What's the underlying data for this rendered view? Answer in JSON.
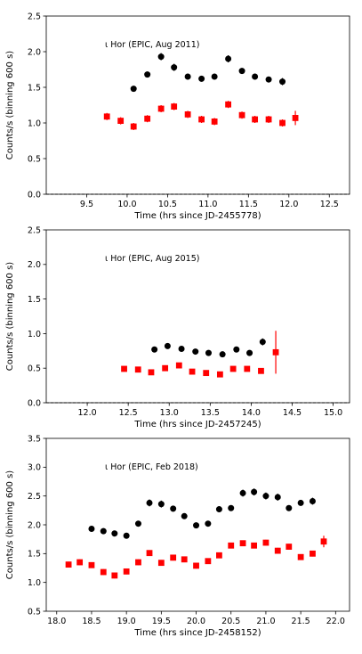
{
  "chart_data": [
    {
      "type": "scatter",
      "annotation": "ι Hor (EPIC, Aug 2011)",
      "xlabel": "Time (hrs since JD-2455778)",
      "ylabel": "Counts/s (binning 600 s)",
      "xlim": [
        9.0,
        12.75
      ],
      "ylim": [
        0.0,
        2.5
      ],
      "xticks": [
        "9.5",
        "10.0",
        "10.5",
        "11.0",
        "11.5",
        "12.0",
        "12.5"
      ],
      "xtick_values": [
        9.5,
        10.0,
        10.5,
        11.0,
        11.5,
        12.0,
        12.5
      ],
      "yticks": [
        "0.0",
        "0.5",
        "1.0",
        "1.5",
        "2.0",
        "2.5"
      ],
      "ytick_values": [
        0.0,
        0.5,
        1.0,
        1.5,
        2.0,
        2.5
      ],
      "series": [
        {
          "color": "#000000",
          "marker": "circle",
          "x": [
            10.08,
            10.25,
            10.42,
            10.58,
            10.75,
            10.92,
            11.08,
            11.25,
            11.42,
            11.58,
            11.75,
            11.92
          ],
          "y": [
            1.48,
            1.68,
            1.93,
            1.78,
            1.65,
            1.62,
            1.65,
            1.9,
            1.73,
            1.65,
            1.61,
            1.58
          ],
          "err": [
            0.04,
            0.04,
            0.05,
            0.05,
            0.04,
            0.04,
            0.04,
            0.05,
            0.04,
            0.04,
            0.04,
            0.05
          ]
        },
        {
          "color": "#ff0000",
          "marker": "square",
          "x": [
            9.75,
            9.92,
            10.08,
            10.25,
            10.42,
            10.58,
            10.75,
            10.92,
            11.08,
            11.25,
            11.42,
            11.58,
            11.75,
            11.92,
            12.08
          ],
          "y": [
            1.09,
            1.03,
            0.95,
            1.06,
            1.2,
            1.23,
            1.12,
            1.05,
            1.02,
            1.26,
            1.11,
            1.05,
            1.05,
            1.0,
            1.07
          ],
          "err": [
            0.05,
            0.05,
            0.05,
            0.05,
            0.05,
            0.05,
            0.05,
            0.05,
            0.05,
            0.05,
            0.05,
            0.05,
            0.05,
            0.05,
            0.1
          ]
        }
      ]
    },
    {
      "type": "scatter",
      "annotation": "ι Hor (EPIC, Aug 2015)",
      "xlabel": "Time (hrs since JD-2457245)",
      "ylabel": "Counts/s (binning 600 s)",
      "xlim": [
        11.5,
        15.2
      ],
      "ylim": [
        0.0,
        2.5
      ],
      "xticks": [
        "12.0",
        "12.5",
        "13.0",
        "13.5",
        "14.0",
        "14.5",
        "15.0"
      ],
      "xtick_values": [
        12.0,
        12.5,
        13.0,
        13.5,
        14.0,
        14.5,
        15.0
      ],
      "yticks": [
        "0.0",
        "0.5",
        "1.0",
        "1.5",
        "2.0",
        "2.5"
      ],
      "ytick_values": [
        0.0,
        0.5,
        1.0,
        1.5,
        2.0,
        2.5
      ],
      "series": [
        {
          "color": "#000000",
          "marker": "circle",
          "x": [
            12.82,
            12.98,
            13.15,
            13.32,
            13.48,
            13.65,
            13.82,
            13.98,
            14.14
          ],
          "y": [
            0.77,
            0.82,
            0.78,
            0.74,
            0.72,
            0.7,
            0.77,
            0.72,
            0.88
          ],
          "err": [
            0.03,
            0.03,
            0.03,
            0.03,
            0.03,
            0.03,
            0.03,
            0.03,
            0.05
          ]
        },
        {
          "color": "#ff0000",
          "marker": "square",
          "x": [
            12.45,
            12.62,
            12.78,
            12.95,
            13.12,
            13.28,
            13.45,
            13.62,
            13.78,
            13.95,
            14.12,
            14.3
          ],
          "y": [
            0.49,
            0.48,
            0.44,
            0.5,
            0.54,
            0.45,
            0.43,
            0.41,
            0.49,
            0.49,
            0.46,
            0.73
          ],
          "err": [
            0.03,
            0.03,
            0.03,
            0.03,
            0.03,
            0.03,
            0.03,
            0.03,
            0.03,
            0.03,
            0.03,
            0.31
          ]
        }
      ]
    },
    {
      "type": "scatter",
      "annotation": "ι Hor (EPIC, Feb 2018)",
      "xlabel": "Time (hrs since JD-2458152)",
      "ylabel": "Counts/s (binning 600 s)",
      "xlim": [
        17.85,
        22.2
      ],
      "ylim": [
        0.5,
        3.5
      ],
      "xticks": [
        "18.0",
        "18.5",
        "19.0",
        "19.5",
        "20.0",
        "20.5",
        "21.0",
        "21.5",
        "22.0"
      ],
      "xtick_values": [
        18.0,
        18.5,
        19.0,
        19.5,
        20.0,
        20.5,
        21.0,
        21.5,
        22.0
      ],
      "yticks": [
        "0.5",
        "1.0",
        "1.5",
        "2.0",
        "2.5",
        "3.0",
        "3.5"
      ],
      "ytick_values": [
        0.5,
        1.0,
        1.5,
        2.0,
        2.5,
        3.0,
        3.5
      ],
      "series": [
        {
          "color": "#000000",
          "marker": "circle",
          "x": [
            18.5,
            18.67,
            18.83,
            19.0,
            19.17,
            19.33,
            19.5,
            19.67,
            19.83,
            20.0,
            20.17,
            20.33,
            20.5,
            20.67,
            20.83,
            21.0,
            21.17,
            21.33,
            21.5,
            21.67
          ],
          "y": [
            1.93,
            1.89,
            1.85,
            1.81,
            2.02,
            2.38,
            2.36,
            2.28,
            2.15,
            1.99,
            2.02,
            2.27,
            2.29,
            2.55,
            2.57,
            2.5,
            2.48,
            2.29,
            2.38,
            2.41
          ],
          "err": [
            0.05,
            0.05,
            0.05,
            0.05,
            0.05,
            0.06,
            0.06,
            0.05,
            0.05,
            0.05,
            0.05,
            0.05,
            0.05,
            0.06,
            0.06,
            0.06,
            0.06,
            0.05,
            0.05,
            0.06
          ]
        },
        {
          "color": "#ff0000",
          "marker": "square",
          "x": [
            18.17,
            18.33,
            18.5,
            18.67,
            18.83,
            19.0,
            19.17,
            19.33,
            19.5,
            19.67,
            19.83,
            20.0,
            20.17,
            20.33,
            20.5,
            20.67,
            20.83,
            21.0,
            21.17,
            21.33,
            21.5,
            21.67,
            21.83
          ],
          "y": [
            1.31,
            1.35,
            1.3,
            1.18,
            1.12,
            1.19,
            1.35,
            1.51,
            1.34,
            1.43,
            1.4,
            1.29,
            1.37,
            1.47,
            1.64,
            1.68,
            1.64,
            1.69,
            1.55,
            1.62,
            1.44,
            1.5,
            1.71
          ],
          "err": [
            0.05,
            0.05,
            0.05,
            0.05,
            0.05,
            0.05,
            0.05,
            0.05,
            0.05,
            0.05,
            0.05,
            0.05,
            0.05,
            0.05,
            0.05,
            0.05,
            0.05,
            0.05,
            0.05,
            0.05,
            0.05,
            0.05,
            0.1
          ]
        }
      ]
    }
  ]
}
